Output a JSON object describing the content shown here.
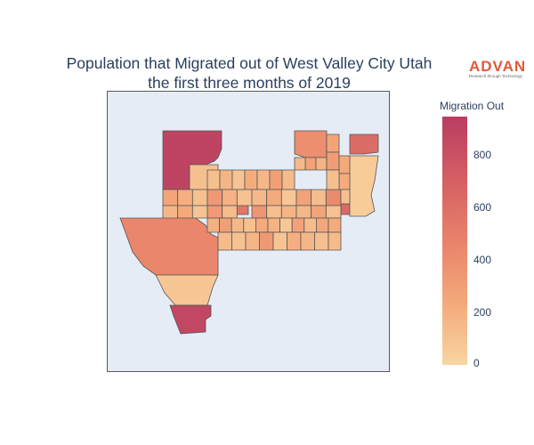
{
  "title": {
    "line1": "Population that Migrated out of West Valley City Utah",
    "line2": "the first three months of 2019"
  },
  "logo": {
    "name": "ADVAN",
    "tagline": "Research through Technology"
  },
  "colorbar": {
    "title": "Migration Out",
    "range": [
      0,
      950
    ],
    "ticks": [
      0,
      200,
      400,
      600,
      800
    ],
    "colors": [
      "#f8d5a1",
      "#f4a97b",
      "#e8826a",
      "#d55e64",
      "#b93d62"
    ]
  },
  "map": {
    "stroke": "#555555",
    "regions": [
      {
        "id": "nw-large",
        "value": 900
      },
      {
        "id": "nw-strip",
        "value": 120
      },
      {
        "id": "south-large",
        "value": 880
      },
      {
        "id": "south-mid",
        "value": 80
      },
      {
        "id": "southwest-large",
        "value": 450
      },
      {
        "id": "northeast-block",
        "value": 400
      },
      {
        "id": "northeast-tip",
        "value": 620
      },
      {
        "id": "east-small",
        "value": 640
      },
      {
        "id": "center-red",
        "value": 560
      },
      {
        "id": "east-edge",
        "value": 50
      }
    ],
    "grid_values": [
      120,
      180,
      90,
      220,
      160,
      300,
      140,
      260,
      200,
      110,
      340,
      190,
      100,
      150,
      230,
      80,
      280,
      130,
      420,
      170,
      240,
      90,
      320,
      140,
      210,
      360,
      120,
      180,
      160,
      260,
      100,
      200,
      300,
      150,
      110,
      230,
      190,
      70,
      280,
      130,
      250,
      140,
      100,
      170,
      330,
      90,
      210,
      160,
      120,
      280,
      140,
      390,
      180,
      230,
      60,
      150,
      200,
      110,
      260,
      170,
      90,
      310,
      130,
      180,
      240,
      100,
      160,
      220,
      140,
      190
    ]
  }
}
